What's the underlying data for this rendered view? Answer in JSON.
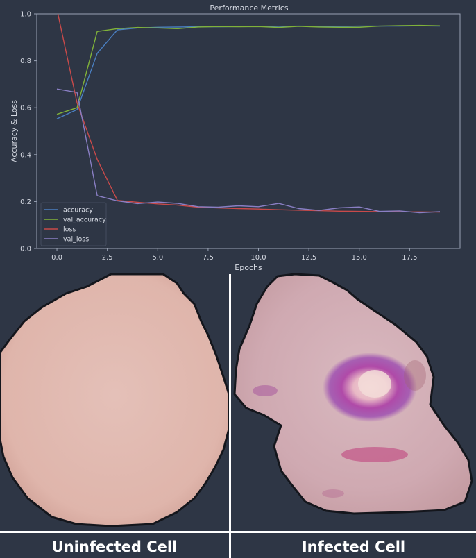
{
  "chart_data": {
    "type": "line",
    "title": "Performance Metrics",
    "xlabel": "Epochs",
    "ylabel": "Accuracy & Loss",
    "xlim": [
      -1,
      20
    ],
    "ylim": [
      0.0,
      1.0
    ],
    "xticks": [
      0.0,
      2.5,
      5.0,
      7.5,
      10.0,
      12.5,
      15.0,
      17.5
    ],
    "xtick_labels": [
      "0.0",
      "2.5",
      "5.0",
      "7.5",
      "10.0",
      "12.5",
      "15.0",
      "17.5"
    ],
    "yticks": [
      0.0,
      0.2,
      0.4,
      0.6,
      0.8,
      1.0
    ],
    "ytick_labels": [
      "0.0",
      "0.2",
      "0.4",
      "0.6",
      "0.8",
      "1.0"
    ],
    "grid": false,
    "legend_position": "lower-left",
    "x": [
      0,
      1,
      2,
      3,
      4,
      5,
      6,
      7,
      8,
      9,
      10,
      11,
      12,
      13,
      14,
      15,
      16,
      17,
      18,
      19
    ],
    "series": [
      {
        "name": "accuracy",
        "color": "#4a7fc1",
        "values": [
          0.553,
          0.592,
          0.832,
          0.932,
          0.94,
          0.943,
          0.944,
          0.945,
          0.945,
          0.946,
          0.946,
          0.947,
          0.948,
          0.947,
          0.947,
          0.948,
          0.948,
          0.948,
          0.949,
          0.948
        ]
      },
      {
        "name": "val_accuracy",
        "color": "#80b23a",
        "values": [
          0.572,
          0.6,
          0.925,
          0.937,
          0.942,
          0.94,
          0.937,
          0.944,
          0.946,
          0.945,
          0.946,
          0.942,
          0.947,
          0.944,
          0.943,
          0.943,
          0.948,
          0.95,
          0.951,
          0.949
        ]
      },
      {
        "name": "loss",
        "color": "#c94a4a",
        "values": [
          1.02,
          0.62,
          0.38,
          0.205,
          0.197,
          0.19,
          0.185,
          0.176,
          0.173,
          0.17,
          0.168,
          0.165,
          0.163,
          0.161,
          0.159,
          0.158,
          0.157,
          0.156,
          0.156,
          0.155
        ]
      },
      {
        "name": "val_loss",
        "color": "#8a7fc4",
        "values": [
          0.68,
          0.665,
          0.225,
          0.203,
          0.191,
          0.198,
          0.192,
          0.178,
          0.176,
          0.182,
          0.178,
          0.192,
          0.17,
          0.162,
          0.173,
          0.177,
          0.158,
          0.16,
          0.152,
          0.157
        ]
      }
    ]
  },
  "cells": {
    "left_label": "Uninfected Cell",
    "right_label": "Infected Cell",
    "background_color": "#2e3645",
    "cell_color": "#e0b7ae",
    "stain_color": "#a53a9c"
  }
}
